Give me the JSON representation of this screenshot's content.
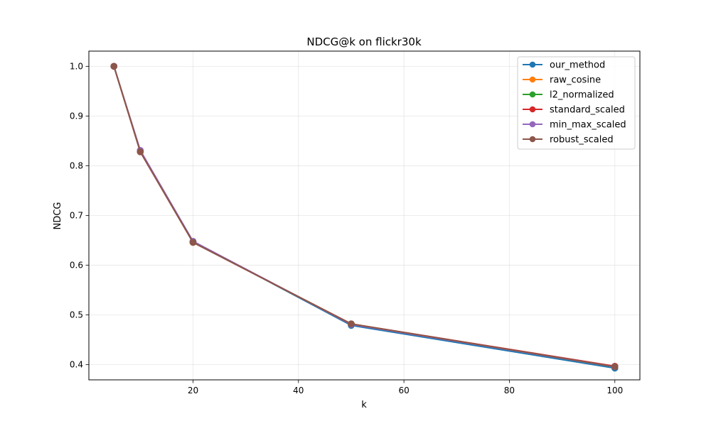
{
  "chart_data": {
    "type": "line",
    "title": "NDCG@k on flickr30k",
    "xlabel": "k",
    "ylabel": "NDCG",
    "xlim": [
      0.25,
      104.75
    ],
    "ylim": [
      0.3695,
      1.0305
    ],
    "x": [
      5,
      10,
      20,
      50,
      100
    ],
    "x_ticks": [
      20,
      40,
      60,
      80,
      100
    ],
    "y_ticks": [
      0.4,
      0.5,
      0.6,
      0.7,
      0.8,
      0.9,
      1.0
    ],
    "x_tick_labels": [
      "20",
      "40",
      "60",
      "80",
      "100"
    ],
    "y_tick_labels": [
      "0.4",
      "0.5",
      "0.6",
      "0.7",
      "0.8",
      "0.9",
      "1.0"
    ],
    "grid": true,
    "legend_position": "top-right",
    "series": [
      {
        "name": "our_method",
        "color": "#1f77b4",
        "values": [
          1.0,
          0.83,
          0.648,
          0.479,
          0.393
        ]
      },
      {
        "name": "raw_cosine",
        "color": "#ff7f0e",
        "values": [
          1.0,
          0.829,
          0.646,
          0.482,
          0.396
        ]
      },
      {
        "name": "l2_normalized",
        "color": "#2ca02c",
        "values": [
          1.0,
          0.829,
          0.646,
          0.482,
          0.396
        ]
      },
      {
        "name": "standard_scaled",
        "color": "#d62728",
        "values": [
          1.0,
          0.828,
          0.646,
          0.482,
          0.397
        ]
      },
      {
        "name": "min_max_scaled",
        "color": "#9467bd",
        "values": [
          1.0,
          0.831,
          0.648,
          0.481,
          0.396
        ]
      },
      {
        "name": "robust_scaled",
        "color": "#8c564b",
        "values": [
          1.0,
          0.828,
          0.646,
          0.482,
          0.396
        ]
      }
    ]
  }
}
